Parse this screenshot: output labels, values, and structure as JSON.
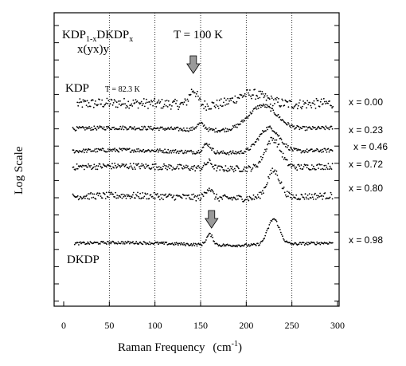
{
  "chart_data": {
    "type": "scatter",
    "title_lines": [
      "KDP",
      "1-x",
      "DKDP",
      "x",
      "T = 100 K",
      "x(yx)y"
    ],
    "xlabel": "Raman Frequency",
    "xlabel_unit": "(cm",
    "xlabel_unit_exp": "-1",
    "xlabel_unit_close": ")",
    "ylabel": "Log Scale",
    "xlim": [
      0,
      300
    ],
    "x_ticks": [
      "0",
      "50",
      "100",
      "150",
      "200",
      "250",
      "300"
    ],
    "x_tick_values": [
      0,
      50,
      100,
      150,
      200,
      250,
      300
    ],
    "grid": "vertical dotted lines at x ticks",
    "annotations": {
      "kdp": "KDP",
      "kdp_temp": "T = 82.3 K",
      "dkdp": "DKDP"
    },
    "arrows": [
      {
        "name": "kdp-soft-mode-arrow",
        "x": 142
      },
      {
        "name": "dkdp-soft-mode-arrow",
        "x": 162
      }
    ],
    "series": [
      {
        "name": "x = 0.00",
        "x_start": 15,
        "x_end": 295,
        "noise": 0.9,
        "peaks": [
          {
            "x": 142,
            "h": 1.35,
            "w": 6
          },
          {
            "x": 205,
            "h": 1.05,
            "w": 24
          }
        ]
      },
      {
        "name": "x = 0.23",
        "x_start": 10,
        "x_end": 295,
        "noise": 0.35,
        "peaks": [
          {
            "x": 150,
            "h": 0.55,
            "w": 6
          },
          {
            "x": 218,
            "h": 2.2,
            "w": 22
          }
        ]
      },
      {
        "name": "x = 0.46",
        "x_start": 10,
        "x_end": 295,
        "noise": 0.35,
        "peaks": [
          {
            "x": 157,
            "h": 0.75,
            "w": 6
          },
          {
            "x": 225,
            "h": 2.2,
            "w": 16
          }
        ]
      },
      {
        "name": "x = 0.72",
        "x_start": 10,
        "x_end": 295,
        "noise": 0.55,
        "peaks": [
          {
            "x": 159,
            "h": 0.6,
            "w": 5
          },
          {
            "x": 229,
            "h": 2.6,
            "w": 12
          }
        ]
      },
      {
        "name": "x = 0.80",
        "x_start": 10,
        "x_end": 295,
        "noise": 0.6,
        "peaks": [
          {
            "x": 159,
            "h": 0.9,
            "w": 5
          },
          {
            "x": 230,
            "h": 2.4,
            "w": 10
          }
        ]
      },
      {
        "name": "x = 0.98",
        "x_start": 12,
        "x_end": 295,
        "noise": 0.25,
        "peaks": [
          {
            "x": 160,
            "h": 0.95,
            "w": 5
          },
          {
            "x": 230,
            "h": 2.3,
            "w": 9
          }
        ]
      }
    ]
  },
  "colors": {
    "ink": "#000000",
    "grid": "#000000",
    "arrow_fill": "#9a9a9a"
  }
}
